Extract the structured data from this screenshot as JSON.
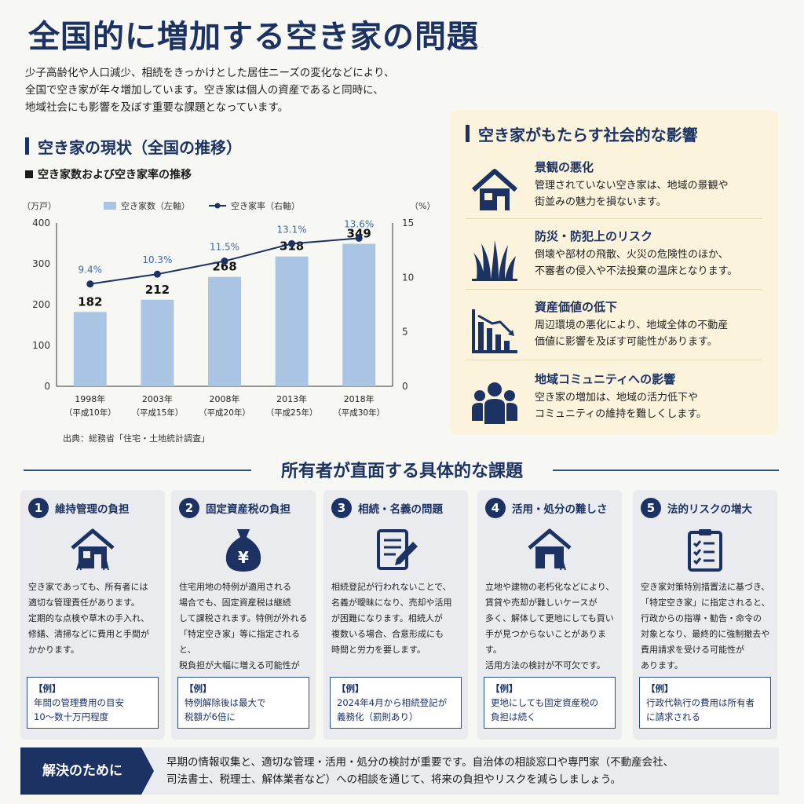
{
  "title": "全国的に増加する空き家の問題",
  "intro": [
    "少子高齢化や人口減少、相続をきっかけとした居住ニーズの変化などにより、",
    "全国で空き家が年々増加しています。空き家は個人の資産であると同時に、",
    "地域社会にも影響を及ぼす重要な課題となっています。"
  ],
  "chart_section": {
    "heading": "空き家の現状（全国の推移）",
    "subheading": "空き家数および空き家率の推移",
    "source": "出典：総務省「住宅・土地統計調査」"
  },
  "chart_data": {
    "type": "bar",
    "categories": [
      "1998年",
      "2003年",
      "2008年",
      "2013年",
      "2018年"
    ],
    "category_sub": [
      "（平成10年）",
      "（平成15年）",
      "（平成20年）",
      "（平成25年）",
      "（平成30年）"
    ],
    "series": [
      {
        "name": "空き家数（左軸）",
        "type": "bar",
        "values": [
          182,
          212,
          268,
          318,
          349
        ],
        "labels": [
          "182",
          "212",
          "268",
          "318",
          "349"
        ]
      },
      {
        "name": "空き家率（右軸）",
        "type": "line",
        "values": [
          9.4,
          10.3,
          11.5,
          13.1,
          13.6
        ],
        "labels": [
          "9.4%",
          "10.3%",
          "11.5%",
          "13.1%",
          "13.6%"
        ]
      }
    ],
    "left_unit": "（万戸）",
    "right_unit": "（%）",
    "ylim_left": [
      0,
      400
    ],
    "ylim_right": [
      0,
      15
    ],
    "left_ticks": [
      0,
      100,
      200,
      300,
      400
    ],
    "right_ticks": [
      0,
      5,
      10,
      15
    ],
    "legend_position": "top",
    "colors": {
      "bar": "#a9c5e3",
      "line": "#1c3263",
      "label_rate": "#3d6aa5"
    }
  },
  "impact": {
    "heading": "空き家がもたらす社会的な影響",
    "items": [
      {
        "icon": "house-icon",
        "title": "景観の悪化",
        "lines": [
          "管理されていない空き家は、地域の景観や",
          "街並みの魅力を損ないます。"
        ]
      },
      {
        "icon": "weeds-icon",
        "title": "防災・防犯上のリスク",
        "lines": [
          "倒壊や部材の飛散、火災の危険性のほか、",
          "不審者の侵入や不法投棄の温床となります。"
        ]
      },
      {
        "icon": "declining-chart-icon",
        "title": "資産価値の低下",
        "lines": [
          "周辺環境の悪化により、地域全体の不動産",
          "価値に影響を及ぼす可能性があります。"
        ]
      },
      {
        "icon": "community-icon",
        "title": "地域コミュニティへの影響",
        "lines": [
          "空き家の増加は、地域の活力低下や",
          "コミュニティの維持を難しくします。"
        ]
      }
    ]
  },
  "issues": {
    "heading": "所有者が直面する具体的な課題",
    "cards": [
      {
        "num": "1",
        "icon": "overgrown-house-icon",
        "title": "維持管理の負担",
        "lines": [
          "空き家であっても、所有者には",
          "適切な管理責任があります。",
          "定期的な点検や草木の手入れ、",
          "修繕、清掃などに費用と手間が",
          "かかります。"
        ],
        "ex_head": "【例】",
        "ex_lines": [
          "年間の管理費用の目安",
          "10〜数十万円程度"
        ]
      },
      {
        "num": "2",
        "icon": "money-bag-icon",
        "title": "固定資産税の負担",
        "lines": [
          "住宅用地の特例が適用される",
          "場合でも、固定資産税は継続",
          "して課税されます。特例が外れる",
          "「特定空き家」等に指定されると、",
          "税負担が大幅に増える可能性が",
          "あります。"
        ],
        "ex_head": "【例】",
        "ex_lines": [
          "特例解除後は最大で",
          "税額が6倍に"
        ]
      },
      {
        "num": "3",
        "icon": "document-pen-icon",
        "title": "相続・名義の問題",
        "lines": [
          "相続登記が行われないことで、",
          "名義が曖昧になり、売却や活用",
          "が困難になります。相続人が",
          "複数いる場合、合意形成にも",
          "時間と労力を要します。"
        ],
        "ex_head": "【例】",
        "ex_lines": [
          "2024年4月から相続登記が",
          "義務化（罰則あり）"
        ]
      },
      {
        "num": "4",
        "icon": "house-icon",
        "title": "活用・処分の難しさ",
        "lines": [
          "立地や建物の老朽化などにより、",
          "賃貸や売却が難しいケースが",
          "多く、解体して更地にしても買い",
          "手が見つからないことがあります。",
          "活用方法の検討が不可欠です。"
        ],
        "ex_head": "【例】",
        "ex_lines": [
          "更地にしても固定資産税の",
          "負担は続く"
        ]
      },
      {
        "num": "5",
        "icon": "checklist-icon",
        "title": "法的リスクの増大",
        "lines": [
          "空き家対策特別措置法に基づき、",
          "「特定空き家」に指定されると、",
          "行政からの指導・勧告・命令の",
          "対象となり、最終的に強制撤去や",
          "費用請求を受ける可能性が",
          "あります。"
        ],
        "ex_head": "【例】",
        "ex_lines": [
          "行政代執行の費用は所有者",
          "に請求される"
        ]
      }
    ]
  },
  "footer": {
    "label": "解決のために",
    "lines": [
      "早期の情報収集と、適切な管理・活用・処分の検討が重要です。自治体の相談窓口や専門家（不動産会社、",
      "司法書士、税理士、解体業者など）への相談を通じて、将来の負担やリスクを減らしましょう。"
    ]
  }
}
